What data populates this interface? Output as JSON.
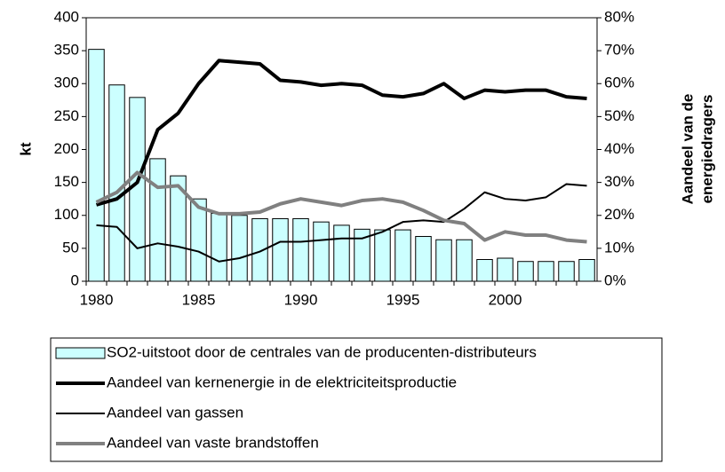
{
  "chart_data": {
    "type": "bar_line",
    "categories": [
      "1980",
      null,
      null,
      null,
      null,
      "1985",
      null,
      null,
      null,
      null,
      "1990",
      null,
      null,
      null,
      null,
      "1995",
      null,
      null,
      null,
      null,
      "2000",
      null,
      null,
      null,
      null
    ],
    "ylabel": "kt",
    "y2label": [
      "Aandeel van de",
      "energiedragers"
    ],
    "ylim": [
      0,
      400
    ],
    "yticks": [
      0,
      50,
      100,
      150,
      200,
      250,
      300,
      350,
      400
    ],
    "y2lim": [
      0,
      80
    ],
    "y2ticks": [
      {
        "value": 0,
        "label": "0%"
      },
      {
        "value": 10,
        "label": "10%"
      },
      {
        "value": 20,
        "label": "20%"
      },
      {
        "value": 30,
        "label": "30%"
      },
      {
        "value": 40,
        "label": "40%"
      },
      {
        "value": 50,
        "label": "50%"
      },
      {
        "value": 60,
        "label": "60%"
      },
      {
        "value": 70,
        "label": "70%"
      },
      {
        "value": 80,
        "label": "80%"
      }
    ],
    "grid": false,
    "series": [
      {
        "name": "SO2-uitstoot door de centrales van de producenten-distributeurs",
        "type": "bar",
        "color": "#ccffff",
        "values": [
          352,
          298,
          279,
          186,
          160,
          125,
          103,
          100,
          95,
          95,
          95,
          90,
          85,
          79,
          78,
          78,
          68,
          63,
          63,
          33,
          35,
          30,
          30,
          30,
          33
        ]
      },
      {
        "name": "Aandeel van kernenergie in de elektriciteitsproductie",
        "type": "line",
        "axis": "y2",
        "color": "#000000",
        "linewidth": 4,
        "values": [
          23.2,
          25,
          30,
          46,
          51,
          60,
          67,
          66.5,
          66,
          61,
          60.5,
          59.5,
          60,
          59.5,
          56.5,
          56,
          57,
          60,
          55.5,
          58,
          57.5,
          58,
          58,
          56,
          55.5
        ]
      },
      {
        "name": "Aandeel van gassen",
        "type": "line",
        "axis": "y2",
        "color": "#000000",
        "linewidth": 2,
        "values": [
          17,
          16.5,
          10,
          11.5,
          10.5,
          9,
          6,
          7,
          9,
          12,
          12,
          12.5,
          13,
          13,
          15,
          18,
          18.5,
          18,
          22,
          27,
          25,
          24.5,
          25.5,
          29.5,
          29
        ]
      },
      {
        "name": "Aandeel van vaste brandstoffen",
        "type": "line",
        "axis": "y2",
        "color": "#808080",
        "linewidth": 4,
        "values": [
          24,
          27,
          33,
          28.5,
          29,
          22.5,
          20.5,
          20.5,
          21,
          23.5,
          25,
          24,
          23,
          24.5,
          25,
          24,
          21.5,
          18.5,
          17.5,
          12.5,
          15,
          14,
          14,
          12.5,
          12
        ]
      }
    ]
  }
}
